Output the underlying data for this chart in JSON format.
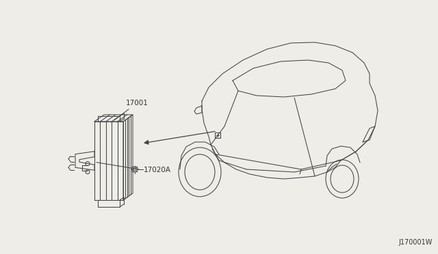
{
  "bg_color": "#eeede8",
  "diagram_id": "J170001W",
  "label_17001": "17001",
  "label_17020A": "17020A",
  "font_color": "#333333",
  "line_color": "#444444",
  "font_size_labels": 7.5,
  "font_size_diagram_id": 7
}
